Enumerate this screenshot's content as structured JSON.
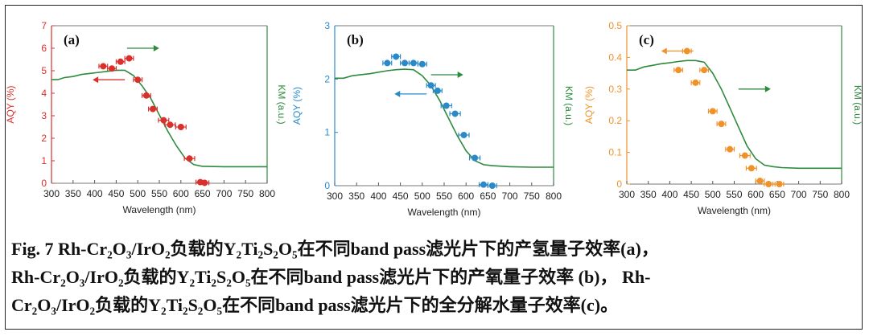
{
  "chart_data": [
    {
      "type": "scatter",
      "panel_label": "(a)",
      "xlabel": "Wavelength (nm)",
      "ylabel": "AQY (%)",
      "y2label": "KM (a.u.)",
      "xlim": [
        300,
        800
      ],
      "ylim": [
        0,
        7
      ],
      "xticks": [
        "300",
        "350",
        "400",
        "450",
        "500",
        "550",
        "600",
        "650",
        "700",
        "750",
        "800"
      ],
      "yticks": [
        "0",
        "1",
        "2",
        "3",
        "4",
        "5",
        "6",
        "7"
      ],
      "colors": {
        "points": "#d9302c",
        "axis": "#d9302c",
        "curve": "#2e8b3e",
        "right_axis": "#2e8b3e"
      },
      "series": [
        {
          "values": [
            {
              "x": 420,
              "y": 5.2,
              "xerr": 10
            },
            {
              "x": 440,
              "y": 5.1,
              "xerr": 10
            },
            {
              "x": 460,
              "y": 5.4,
              "xerr": 10
            },
            {
              "x": 480,
              "y": 5.55,
              "xerr": 10
            },
            {
              "x": 500,
              "y": 4.6,
              "xerr": 10
            },
            {
              "x": 520,
              "y": 3.9,
              "xerr": 10
            },
            {
              "x": 535,
              "y": 3.3,
              "xerr": 10
            },
            {
              "x": 560,
              "y": 2.8,
              "xerr": 12
            },
            {
              "x": 575,
              "y": 2.6,
              "xerr": 12
            },
            {
              "x": 600,
              "y": 2.5,
              "xerr": 12
            },
            {
              "x": 620,
              "y": 1.1,
              "xerr": 12
            },
            {
              "x": 645,
              "y": 0.05,
              "xerr": 10
            },
            {
              "x": 655,
              "y": 0.02,
              "xerr": 10
            }
          ]
        },
        {
          "y_range": [
            0,
            7.6
          ],
          "values": [
            {
              "x": 300,
              "y": 5.0
            },
            {
              "x": 315,
              "y": 5.0
            },
            {
              "x": 330,
              "y": 5.1
            },
            {
              "x": 350,
              "y": 5.15
            },
            {
              "x": 370,
              "y": 5.25
            },
            {
              "x": 390,
              "y": 5.3
            },
            {
              "x": 410,
              "y": 5.35
            },
            {
              "x": 430,
              "y": 5.4
            },
            {
              "x": 450,
              "y": 5.45
            },
            {
              "x": 470,
              "y": 5.45
            },
            {
              "x": 490,
              "y": 5.2
            },
            {
              "x": 510,
              "y": 4.7
            },
            {
              "x": 530,
              "y": 4.1
            },
            {
              "x": 550,
              "y": 3.3
            },
            {
              "x": 570,
              "y": 2.5
            },
            {
              "x": 590,
              "y": 1.8
            },
            {
              "x": 610,
              "y": 1.2
            },
            {
              "x": 630,
              "y": 0.9
            },
            {
              "x": 650,
              "y": 0.82
            },
            {
              "x": 700,
              "y": 0.8
            },
            {
              "x": 750,
              "y": 0.8
            },
            {
              "x": 800,
              "y": 0.8
            }
          ]
        }
      ]
    },
    {
      "type": "scatter",
      "panel_label": "(b)",
      "xlabel": "Wavelength (nm)",
      "ylabel": "AQY (%)",
      "y2label": "KM (a.u.)",
      "xlim": [
        300,
        800
      ],
      "ylim": [
        0,
        3
      ],
      "xticks": [
        "300",
        "350",
        "400",
        "450",
        "500",
        "550",
        "600",
        "650",
        "700",
        "750",
        "800"
      ],
      "yticks": [
        "0",
        "1",
        "2",
        "3"
      ],
      "colors": {
        "points": "#2a8ac9",
        "axis": "#2a8ac9",
        "curve": "#2e8b3e",
        "right_axis": "#2e8b3e"
      },
      "series": [
        {
          "values": [
            {
              "x": 420,
              "y": 2.3,
              "xerr": 10
            },
            {
              "x": 440,
              "y": 2.42,
              "xerr": 10
            },
            {
              "x": 460,
              "y": 2.3,
              "xerr": 10
            },
            {
              "x": 480,
              "y": 2.3,
              "xerr": 10
            },
            {
              "x": 500,
              "y": 2.28,
              "xerr": 10
            },
            {
              "x": 520,
              "y": 1.88,
              "xerr": 10
            },
            {
              "x": 535,
              "y": 1.78,
              "xerr": 10
            },
            {
              "x": 555,
              "y": 1.5,
              "xerr": 12
            },
            {
              "x": 575,
              "y": 1.35,
              "xerr": 12
            },
            {
              "x": 595,
              "y": 0.95,
              "xerr": 12
            },
            {
              "x": 620,
              "y": 0.52,
              "xerr": 12
            },
            {
              "x": 640,
              "y": 0.02,
              "xerr": 10
            },
            {
              "x": 660,
              "y": 0.0,
              "xerr": 10
            }
          ]
        },
        {
          "y_range": [
            0,
            3.2
          ],
          "values": [
            {
              "x": 300,
              "y": 2.15
            },
            {
              "x": 320,
              "y": 2.15
            },
            {
              "x": 340,
              "y": 2.2
            },
            {
              "x": 360,
              "y": 2.22
            },
            {
              "x": 380,
              "y": 2.24
            },
            {
              "x": 400,
              "y": 2.27
            },
            {
              "x": 420,
              "y": 2.3
            },
            {
              "x": 440,
              "y": 2.32
            },
            {
              "x": 460,
              "y": 2.33
            },
            {
              "x": 480,
              "y": 2.32
            },
            {
              "x": 500,
              "y": 2.2
            },
            {
              "x": 520,
              "y": 2.0
            },
            {
              "x": 540,
              "y": 1.7
            },
            {
              "x": 560,
              "y": 1.35
            },
            {
              "x": 580,
              "y": 1.0
            },
            {
              "x": 600,
              "y": 0.7
            },
            {
              "x": 620,
              "y": 0.5
            },
            {
              "x": 640,
              "y": 0.42
            },
            {
              "x": 660,
              "y": 0.4
            },
            {
              "x": 700,
              "y": 0.38
            },
            {
              "x": 750,
              "y": 0.37
            },
            {
              "x": 800,
              "y": 0.37
            }
          ]
        }
      ]
    },
    {
      "type": "scatter",
      "panel_label": "(c)",
      "xlabel": "Wavelength (nm)",
      "ylabel": "AQY (%)",
      "y2label": "KM (a.u.)",
      "xlim": [
        300,
        800
      ],
      "ylim": [
        0,
        0.5
      ],
      "xticks": [
        "300",
        "350",
        "400",
        "450",
        "500",
        "550",
        "600",
        "650",
        "700",
        "750",
        "800"
      ],
      "yticks": [
        "0",
        "0.1",
        "0.2",
        "0.3",
        "0.4",
        "0.5"
      ],
      "colors": {
        "points": "#f0922a",
        "axis": "#f0922a",
        "curve": "#2e8b3e",
        "right_axis": "#2e8b3e"
      },
      "series": [
        {
          "values": [
            {
              "x": 420,
              "y": 0.36,
              "xerr": 10
            },
            {
              "x": 440,
              "y": 0.42,
              "xerr": 10
            },
            {
              "x": 460,
              "y": 0.32,
              "xerr": 10
            },
            {
              "x": 480,
              "y": 0.36,
              "xerr": 10
            },
            {
              "x": 500,
              "y": 0.23,
              "xerr": 10
            },
            {
              "x": 520,
              "y": 0.19,
              "xerr": 10
            },
            {
              "x": 540,
              "y": 0.11,
              "xerr": 10
            },
            {
              "x": 575,
              "y": 0.09,
              "xerr": 12
            },
            {
              "x": 590,
              "y": 0.05,
              "xerr": 12
            },
            {
              "x": 610,
              "y": 0.01,
              "xerr": 10
            },
            {
              "x": 630,
              "y": 0.0,
              "xerr": 10
            },
            {
              "x": 655,
              "y": 0.0,
              "xerr": 10
            }
          ]
        },
        {
          "y_range": [
            0,
            0.5
          ],
          "values": [
            {
              "x": 300,
              "y": 0.36
            },
            {
              "x": 320,
              "y": 0.36
            },
            {
              "x": 340,
              "y": 0.37
            },
            {
              "x": 360,
              "y": 0.375
            },
            {
              "x": 380,
              "y": 0.38
            },
            {
              "x": 400,
              "y": 0.383
            },
            {
              "x": 420,
              "y": 0.387
            },
            {
              "x": 440,
              "y": 0.39
            },
            {
              "x": 460,
              "y": 0.39
            },
            {
              "x": 480,
              "y": 0.385
            },
            {
              "x": 500,
              "y": 0.35
            },
            {
              "x": 520,
              "y": 0.3
            },
            {
              "x": 540,
              "y": 0.24
            },
            {
              "x": 560,
              "y": 0.18
            },
            {
              "x": 580,
              "y": 0.12
            },
            {
              "x": 600,
              "y": 0.08
            },
            {
              "x": 620,
              "y": 0.06
            },
            {
              "x": 640,
              "y": 0.055
            },
            {
              "x": 660,
              "y": 0.052
            },
            {
              "x": 700,
              "y": 0.05
            },
            {
              "x": 750,
              "y": 0.05
            },
            {
              "x": 800,
              "y": 0.05
            }
          ]
        }
      ]
    }
  ],
  "caption": {
    "lines": [
      "Fig. 7 Rh-Cr₂O₃/IrO₂负载的Y₂Ti₂S₂O₅在不同band pass滤光片下的产氢量子效率(a)，",
      "Rh-Cr₂O₃/IrO₂负载的Y₂Ti₂S₂O₅在不同band pass滤光片下的产氧量子效率 (b)， Rh-",
      "Cr₂O₃/IrO₂负载的Y₂Ti₂S₂O₅在不同band pass滤光片下的全分解水量子效率(c)。"
    ]
  }
}
